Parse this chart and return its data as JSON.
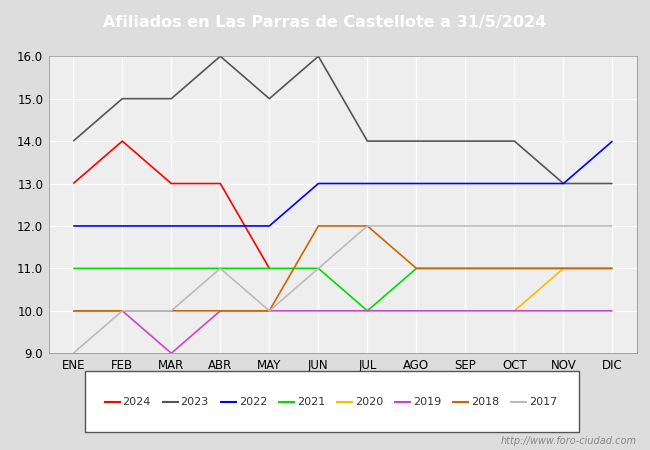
{
  "title": "Afiliados en Las Parras de Castellote a 31/5/2024",
  "months": [
    "ENE",
    "FEB",
    "MAR",
    "ABR",
    "MAY",
    "JUN",
    "JUL",
    "AGO",
    "SEP",
    "OCT",
    "NOV",
    "DIC"
  ],
  "ylim": [
    9.0,
    16.0
  ],
  "yticks": [
    9.0,
    10.0,
    11.0,
    12.0,
    13.0,
    14.0,
    15.0,
    16.0
  ],
  "series": {
    "2024": {
      "color": "#ff0000",
      "data": [
        13,
        14,
        13,
        13,
        11,
        null,
        null,
        null,
        null,
        null,
        null,
        null
      ]
    },
    "2023": {
      "color": "#555555",
      "data": [
        14,
        15,
        15,
        16,
        15,
        16,
        14,
        14,
        14,
        14,
        13,
        13
      ]
    },
    "2022": {
      "color": "#0000ff",
      "data": [
        12,
        12,
        12,
        12,
        12,
        13,
        13,
        13,
        13,
        13,
        13,
        14
      ]
    },
    "2021": {
      "color": "#00dd00",
      "data": [
        11,
        11,
        11,
        11,
        11,
        11,
        10,
        11,
        11,
        11,
        11,
        11
      ]
    },
    "2020": {
      "color": "#ffbb00",
      "data": [
        null,
        null,
        null,
        null,
        null,
        null,
        null,
        null,
        null,
        10,
        11,
        11
      ]
    },
    "2019": {
      "color": "#cc44cc",
      "data": [
        10,
        10,
        9,
        10,
        10,
        10,
        10,
        10,
        10,
        10,
        10,
        10
      ]
    },
    "2018": {
      "color": "#cc6600",
      "data": [
        10,
        10,
        10,
        10,
        10,
        12,
        12,
        11,
        11,
        11,
        11,
        11
      ]
    },
    "2017": {
      "color": "#bbbbbb",
      "data": [
        9,
        10,
        10,
        11,
        10,
        11,
        12,
        12,
        12,
        12,
        12,
        12
      ]
    }
  },
  "title_bg_color": "#5588bb",
  "title_color": "#ffffff",
  "plot_bg_color": "#eeeeee",
  "outer_bg_color": "#dddddd",
  "grid_color": "#ffffff",
  "footer_url": "http://www.foro-ciudad.com",
  "legend_order": [
    "2024",
    "2023",
    "2022",
    "2021",
    "2020",
    "2019",
    "2018",
    "2017"
  ]
}
